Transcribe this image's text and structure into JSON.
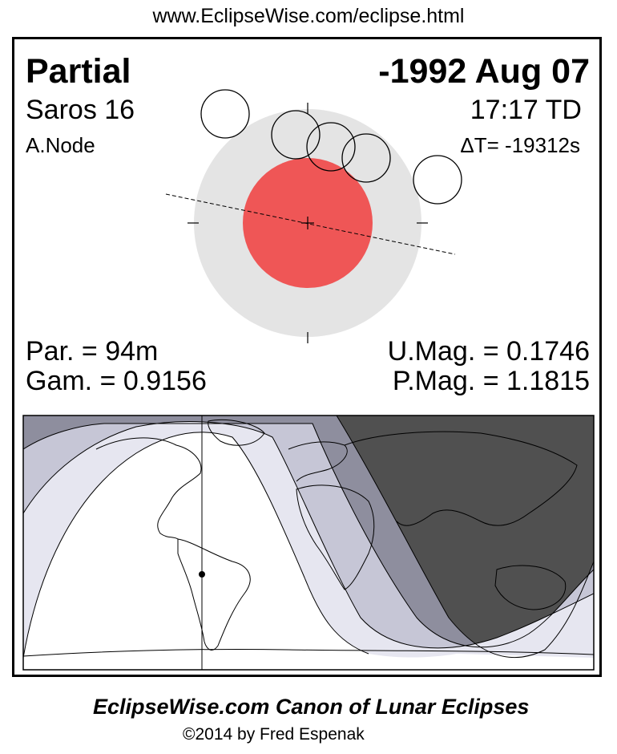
{
  "header": {
    "url": "www.EclipseWise.com/eclipse.html"
  },
  "eclipse": {
    "type": "Partial",
    "date": "-1992 Aug 07",
    "saros": "Saros  16",
    "time": "17:17 TD",
    "node": "A.Node",
    "delta_t": "ΔT= -19312s",
    "par_duration": "Par. =  94m",
    "gamma": "Gam. = 0.9156",
    "umbral_magnitude": "U.Mag. = 0.1746",
    "penumbral_magnitude": "P.Mag. = 1.1815"
  },
  "colors": {
    "penumbra": "#e4e4e4",
    "umbra": "#ef5656",
    "night": "#505050",
    "penumbral_band_outer": "#9a9aaa",
    "penumbral_band_mid": "#c8c8d8",
    "penumbral_band_inner": "#e8e8f2"
  },
  "footer": {
    "title": "EclipseWise.com Canon of Lunar Eclipses",
    "credit": "©2014 by Fred Espenak"
  }
}
